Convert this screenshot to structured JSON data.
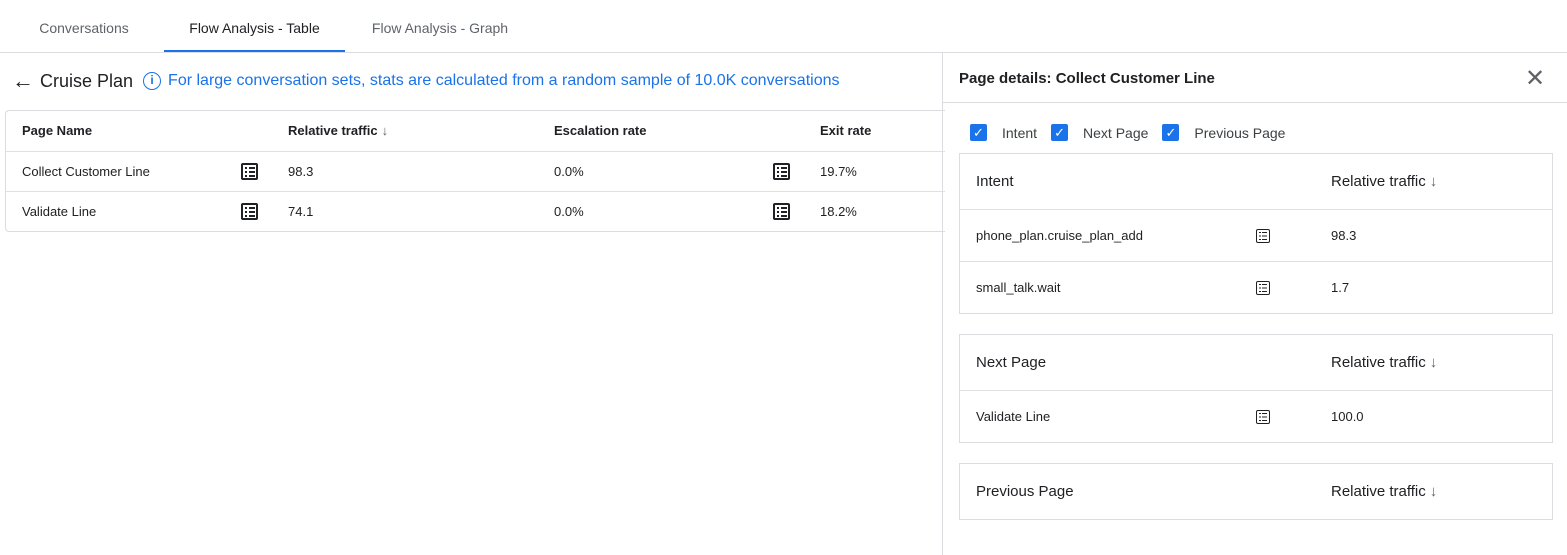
{
  "tabs": [
    {
      "label": "Conversations"
    },
    {
      "label": "Flow Analysis - Table",
      "active": true
    },
    {
      "label": "Flow Analysis - Graph"
    }
  ],
  "main": {
    "title": "Cruise Plan",
    "notice": "For large conversation sets, stats are calculated from a random sample of 10.0K conversations",
    "table": {
      "headers": {
        "page_name": "Page Name",
        "relative_traffic": "Relative traffic",
        "escalation_rate": "Escalation rate",
        "exit_rate": "Exit rate"
      },
      "sort_icon": "arrow-down",
      "rows": [
        {
          "page_name": "Collect Customer Line",
          "relative_traffic": "98.3",
          "escalation_rate": "0.0%",
          "exit_rate": "19.7%"
        },
        {
          "page_name": "Validate Line",
          "relative_traffic": "74.1",
          "escalation_rate": "0.0%",
          "exit_rate": "18.2%"
        }
      ]
    }
  },
  "details": {
    "title": "Page details: Collect Customer Line",
    "filters": [
      {
        "label": "Intent",
        "checked": true
      },
      {
        "label": "Next Page",
        "checked": true
      },
      {
        "label": "Previous Page",
        "checked": true
      }
    ],
    "intent": {
      "header": "Intent",
      "traffic_header": "Relative traffic",
      "rows": [
        {
          "name": "phone_plan.cruise_plan_add",
          "value": "98.3"
        },
        {
          "name": "small_talk.wait",
          "value": "1.7"
        }
      ]
    },
    "next_page": {
      "header": "Next Page",
      "traffic_header": "Relative traffic",
      "rows": [
        {
          "name": "Validate Line",
          "value": "100.0"
        }
      ]
    },
    "previous_page": {
      "header": "Previous Page",
      "traffic_header": "Relative traffic",
      "rows": []
    }
  },
  "colors": {
    "accent": "#1a73e8"
  }
}
